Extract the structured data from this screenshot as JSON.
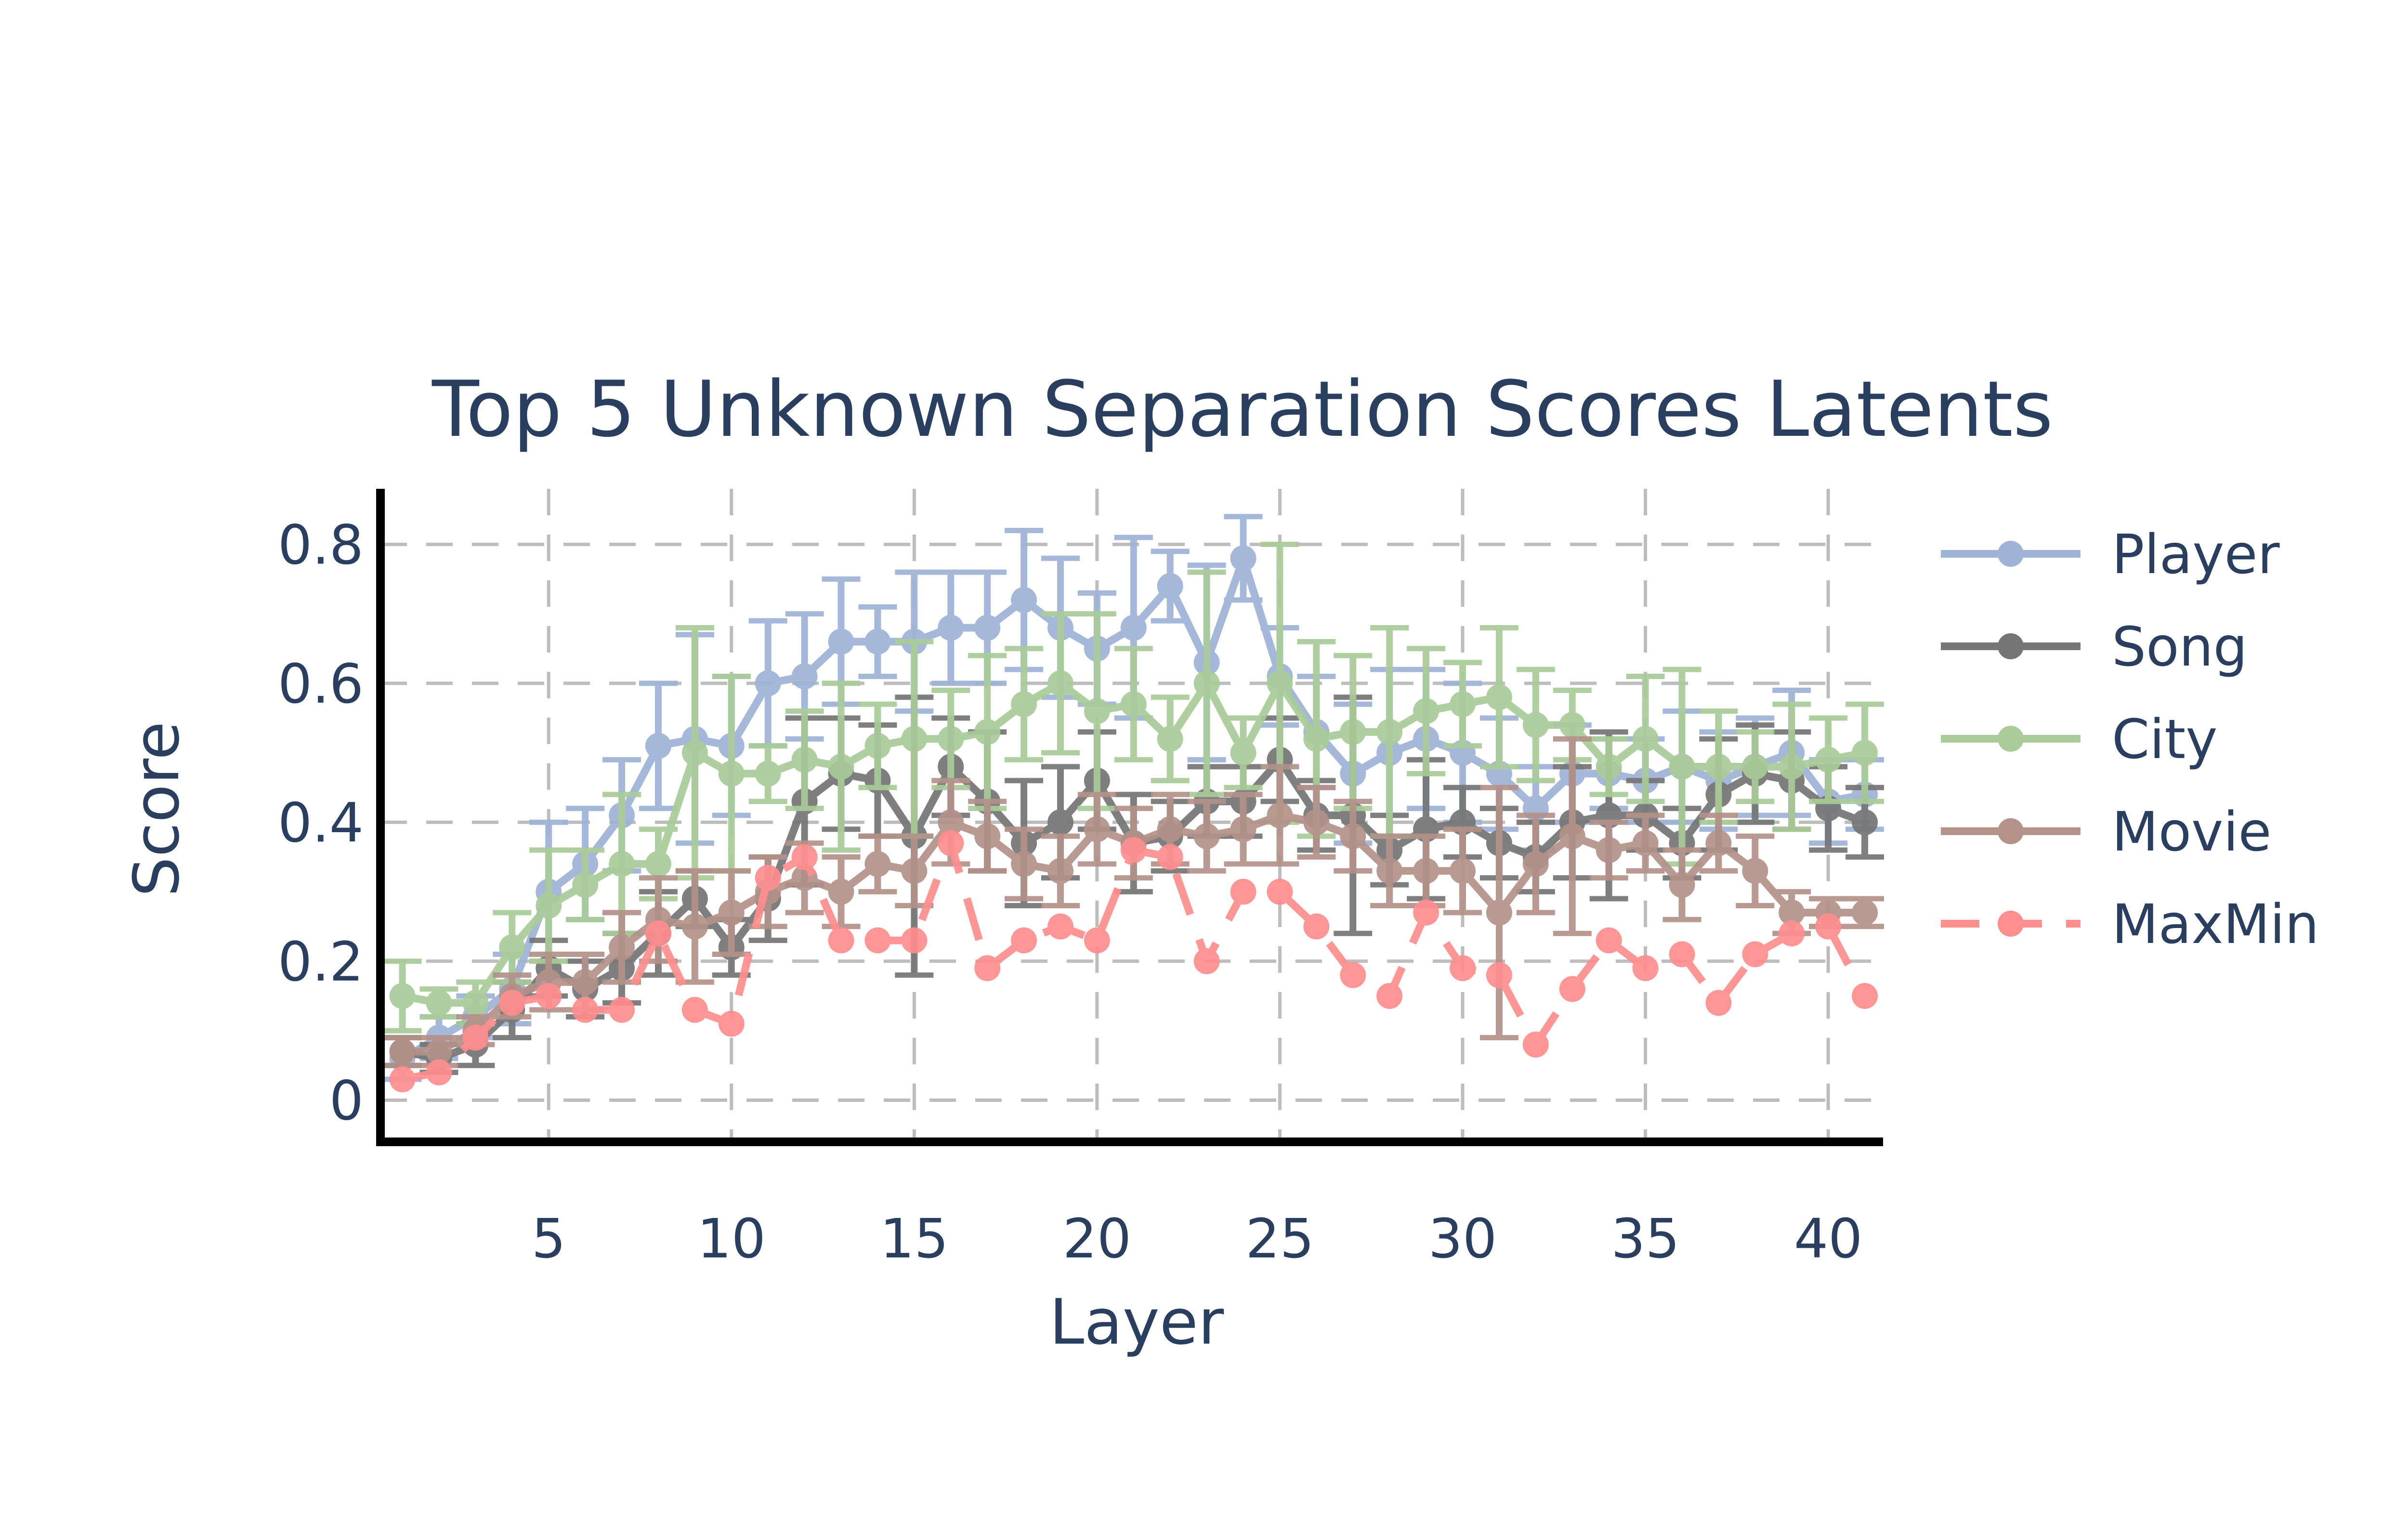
{
  "chart_data": {
    "type": "line",
    "title": "Top 5 Unknown Separation Scores Latents",
    "xlabel": "Layer",
    "ylabel": "Score",
    "xlim": [
      0.4,
      41.5
    ],
    "ylim": [
      -0.06,
      0.88
    ],
    "xticks": [
      5,
      10,
      15,
      20,
      25,
      30,
      35,
      40
    ],
    "yticks": [
      0,
      0.2,
      0.4,
      0.6,
      0.8
    ],
    "ytick_labels": [
      "0",
      "0.2",
      "0.4",
      "0.6",
      "0.8"
    ],
    "grid": true,
    "legend_position": "right",
    "x": [
      1,
      2,
      3,
      4,
      5,
      6,
      7,
      8,
      9,
      10,
      11,
      12,
      13,
      14,
      15,
      16,
      17,
      18,
      19,
      20,
      21,
      22,
      23,
      24,
      25,
      26,
      27,
      28,
      29,
      30,
      31,
      32,
      33,
      34,
      35,
      36,
      37,
      38,
      39,
      40,
      41
    ],
    "series": [
      {
        "name": "Player",
        "color": "#9fb3d6",
        "dash": "solid",
        "values": [
          0.06,
          0.09,
          0.12,
          0.16,
          0.3,
          0.34,
          0.41,
          0.51,
          0.52,
          0.51,
          0.6,
          0.61,
          0.66,
          0.66,
          0.66,
          0.68,
          0.68,
          0.72,
          0.68,
          0.65,
          0.68,
          0.74,
          0.63,
          0.78,
          0.61,
          0.53,
          0.47,
          0.5,
          0.52,
          0.5,
          0.47,
          0.42,
          0.47,
          0.47,
          0.46,
          0.48,
          0.46,
          0.48,
          0.5,
          0.43,
          0.44
        ],
        "errors": [
          0.03,
          0.03,
          0.03,
          0.05,
          0.1,
          0.08,
          0.08,
          0.09,
          0.15,
          0.1,
          0.09,
          0.09,
          0.09,
          0.05,
          0.1,
          0.08,
          0.08,
          0.1,
          0.1,
          0.08,
          0.13,
          0.05,
          0.14,
          0.06,
          0.07,
          0.08,
          0.1,
          0.12,
          0.1,
          0.1,
          0.08,
          0.06,
          0.07,
          0.05,
          0.06,
          0.08,
          0.07,
          0.07,
          0.09,
          0.06,
          0.05
        ]
      },
      {
        "name": "Song",
        "color": "#757575",
        "dash": "solid",
        "values": [
          0.07,
          0.06,
          0.08,
          0.13,
          0.19,
          0.16,
          0.19,
          0.24,
          0.29,
          0.22,
          0.29,
          0.43,
          0.47,
          0.46,
          0.38,
          0.48,
          0.43,
          0.37,
          0.4,
          0.46,
          0.37,
          0.38,
          0.43,
          0.43,
          0.49,
          0.41,
          0.41,
          0.36,
          0.39,
          0.4,
          0.37,
          0.35,
          0.4,
          0.41,
          0.41,
          0.37,
          0.44,
          0.47,
          0.46,
          0.42,
          0.4
        ],
        "errors": [
          0.02,
          0.02,
          0.03,
          0.04,
          0.04,
          0.04,
          0.05,
          0.06,
          0.04,
          0.04,
          0.06,
          0.12,
          0.08,
          0.08,
          0.2,
          0.07,
          0.1,
          0.09,
          0.08,
          0.07,
          0.07,
          0.05,
          0.05,
          0.05,
          0.06,
          0.05,
          0.17,
          0.05,
          0.1,
          0.05,
          0.05,
          0.05,
          0.08,
          0.12,
          0.05,
          0.05,
          0.08,
          0.07,
          0.07,
          0.06,
          0.05
        ]
      },
      {
        "name": "City",
        "color": "#aacc98",
        "dash": "solid",
        "values": [
          0.15,
          0.14,
          0.14,
          0.22,
          0.28,
          0.31,
          0.34,
          0.34,
          0.5,
          0.47,
          0.47,
          0.49,
          0.48,
          0.51,
          0.52,
          0.52,
          0.53,
          0.57,
          0.6,
          0.56,
          0.57,
          0.52,
          0.6,
          0.5,
          0.6,
          0.52,
          0.53,
          0.53,
          0.56,
          0.57,
          0.58,
          0.54,
          0.54,
          0.48,
          0.52,
          0.48,
          0.48,
          0.48,
          0.48,
          0.49,
          0.5
        ],
        "errors": [
          0.05,
          0.02,
          0.03,
          0.05,
          0.08,
          0.05,
          0.1,
          0.05,
          0.18,
          0.14,
          0.04,
          0.07,
          0.12,
          0.06,
          0.14,
          0.07,
          0.11,
          0.08,
          0.1,
          0.14,
          0.08,
          0.06,
          0.16,
          0.05,
          0.2,
          0.14,
          0.11,
          0.15,
          0.09,
          0.06,
          0.1,
          0.08,
          0.05,
          0.04,
          0.09,
          0.14,
          0.08,
          0.05,
          0.09,
          0.06,
          0.07
        ]
      },
      {
        "name": "Movie",
        "color": "#b39289",
        "dash": "solid",
        "values": [
          0.07,
          0.07,
          0.1,
          0.15,
          0.17,
          0.17,
          0.22,
          0.26,
          0.25,
          0.27,
          0.3,
          0.32,
          0.3,
          0.34,
          0.33,
          0.4,
          0.38,
          0.34,
          0.33,
          0.39,
          0.37,
          0.39,
          0.38,
          0.39,
          0.41,
          0.4,
          0.38,
          0.33,
          0.33,
          0.33,
          0.27,
          0.34,
          0.38,
          0.36,
          0.37,
          0.31,
          0.37,
          0.33,
          0.27,
          0.27,
          0.27
        ],
        "errors": [
          0.02,
          0.02,
          0.02,
          0.03,
          0.04,
          0.04,
          0.05,
          0.06,
          0.08,
          0.06,
          0.05,
          0.05,
          0.05,
          0.04,
          0.05,
          0.06,
          0.05,
          0.05,
          0.05,
          0.05,
          0.05,
          0.05,
          0.05,
          0.05,
          0.07,
          0.05,
          0.05,
          0.05,
          0.05,
          0.06,
          0.18,
          0.07,
          0.14,
          0.04,
          0.04,
          0.05,
          0.04,
          0.05,
          0.03,
          0.02,
          0.02
        ]
      },
      {
        "name": "MaxMin",
        "color": "#ff8e8e",
        "dash": "dash",
        "values": [
          0.03,
          0.04,
          0.09,
          0.14,
          0.15,
          0.13,
          0.13,
          0.24,
          0.13,
          0.11,
          0.32,
          0.35,
          0.23,
          0.23,
          0.23,
          0.37,
          0.19,
          0.23,
          0.25,
          0.23,
          0.36,
          0.35,
          0.2,
          0.3,
          0.3,
          0.25,
          0.18,
          0.15,
          0.27,
          0.19,
          0.18,
          0.08,
          0.16,
          0.23,
          0.19,
          0.21,
          0.14,
          0.21,
          0.24,
          0.25,
          0.15
        ]
      }
    ]
  }
}
